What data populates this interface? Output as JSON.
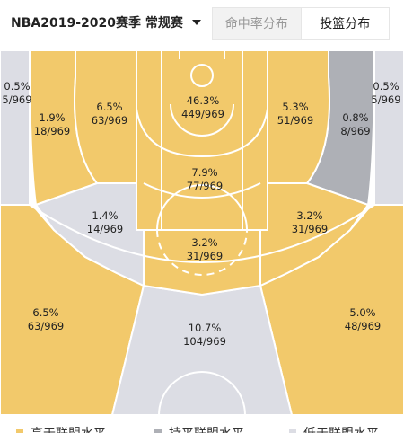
{
  "header": {
    "season_label": "NBA2019-2020赛季 常规赛",
    "tabs": [
      {
        "label": "命中率分布",
        "active": false
      },
      {
        "label": "投篮分布",
        "active": true
      }
    ]
  },
  "colors": {
    "above": "#f2c96b",
    "average": "#aeb0b6",
    "below": "#dcdde4",
    "line": "#ffffff"
  },
  "zones": {
    "left_corner_three": {
      "pct": "0.5%",
      "count": "5/969",
      "level": "below"
    },
    "right_corner_three": {
      "pct": "0.5%",
      "count": "5/969",
      "level": "below"
    },
    "left_baseline_mid": {
      "pct": "1.9%",
      "count": "18/969",
      "level": "above"
    },
    "left_elbow_mid": {
      "pct": "6.5%",
      "count": "63/969",
      "level": "above"
    },
    "restricted_area": {
      "pct": "46.3%",
      "count": "449/969",
      "level": "above"
    },
    "right_elbow_mid": {
      "pct": "5.3%",
      "count": "51/969",
      "level": "above"
    },
    "right_baseline_mid": {
      "pct": "0.8%",
      "count": "8/969",
      "level": "average"
    },
    "free_throw": {
      "pct": "7.9%",
      "count": "77/969",
      "level": "above"
    },
    "left_wing_mid": {
      "pct": "1.4%",
      "count": "14/969",
      "level": "below"
    },
    "right_wing_mid": {
      "pct": "3.2%",
      "count": "31/969",
      "level": "above"
    },
    "top_key_mid": {
      "pct": "3.2%",
      "count": "31/969",
      "level": "above"
    },
    "left_wing_three": {
      "pct": "6.5%",
      "count": "63/969",
      "level": "above"
    },
    "top_three": {
      "pct": "10.7%",
      "count": "104/969",
      "level": "below"
    },
    "right_wing_three": {
      "pct": "5.0%",
      "count": "48/969",
      "level": "above"
    }
  },
  "legend": [
    {
      "label": "高于联盟水平",
      "color": "#f2c96b"
    },
    {
      "label": "持平联盟水平",
      "color": "#aeb0b6"
    },
    {
      "label": "低于联盟水平",
      "color": "#dcdde4"
    }
  ]
}
